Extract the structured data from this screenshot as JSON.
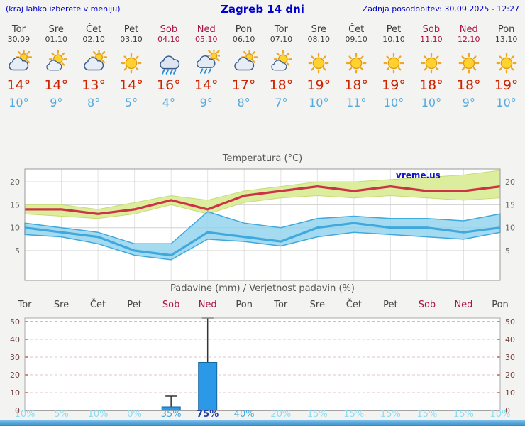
{
  "header": {
    "left_note": "(kraj lahko izberete v meniju)",
    "title": "Zagreb 14 dni",
    "updated": "Zadnja posodobitev: 30.09.2025 - 12:27"
  },
  "colors": {
    "header_blue": "#0000cc",
    "weekend": "#aa1144",
    "high_temp": "#cc2200",
    "low_temp": "#55aadd",
    "max_line": "#cc3344",
    "min_line": "#3fa8dc",
    "max_band": "#dcee9e",
    "max_band_edge": "#c6dc74",
    "min_band": "#8ed2ee",
    "bar_fill": "#2b99e8",
    "bar_stroke": "#15639f",
    "watermark": "#1111cc",
    "prob_light": "#8fdcf2",
    "prob_mid": "#46a8dc",
    "prob_high": "#1d3fa8"
  },
  "days": [
    {
      "name": "Tor",
      "date": "30.09",
      "weekend": false,
      "icon": "cloud-sun",
      "high": "14°",
      "low": "10°"
    },
    {
      "name": "Sre",
      "date": "01.10",
      "weekend": false,
      "icon": "sun-cloud",
      "high": "14°",
      "low": "9°"
    },
    {
      "name": "Čet",
      "date": "02.10",
      "weekend": false,
      "icon": "cloud-sun",
      "high": "13°",
      "low": "8°"
    },
    {
      "name": "Pet",
      "date": "03.10",
      "weekend": false,
      "icon": "sun",
      "high": "14°",
      "low": "5°"
    },
    {
      "name": "Sob",
      "date": "04.10",
      "weekend": true,
      "icon": "rain",
      "high": "16°",
      "low": "4°"
    },
    {
      "name": "Ned",
      "date": "05.10",
      "weekend": true,
      "icon": "rain-sun",
      "high": "14°",
      "low": "9°"
    },
    {
      "name": "Pon",
      "date": "06.10",
      "weekend": false,
      "icon": "cloud-sun",
      "high": "17°",
      "low": "8°"
    },
    {
      "name": "Tor",
      "date": "07.10",
      "weekend": false,
      "icon": "sun-cloud",
      "high": "18°",
      "low": "7°"
    },
    {
      "name": "Sre",
      "date": "08.10",
      "weekend": false,
      "icon": "sun",
      "high": "19°",
      "low": "10°"
    },
    {
      "name": "Čet",
      "date": "09.10",
      "weekend": false,
      "icon": "sun",
      "high": "18°",
      "low": "11°"
    },
    {
      "name": "Pet",
      "date": "10.10",
      "weekend": false,
      "icon": "sun",
      "high": "19°",
      "low": "10°"
    },
    {
      "name": "Sob",
      "date": "11.10",
      "weekend": true,
      "icon": "sun",
      "high": "18°",
      "low": "10°"
    },
    {
      "name": "Ned",
      "date": "12.10",
      "weekend": true,
      "icon": "sun",
      "high": "18°",
      "low": "9°"
    },
    {
      "name": "Pon",
      "date": "13.10",
      "weekend": false,
      "icon": "sun",
      "high": "19°",
      "low": "10°"
    }
  ],
  "chart_data": [
    {
      "type": "line",
      "title": "Temperatura (°C)",
      "watermark": "vreme.us",
      "x_labels": [
        "Tor",
        "Sre",
        "Čet",
        "Pet",
        "Sob",
        "Ned",
        "Pon",
        "Tor",
        "Sre",
        "Čet",
        "Pet",
        "Sob",
        "Ned",
        "Pon"
      ],
      "ylim": [
        -1.5,
        22.8
      ],
      "yticks": [
        5,
        10,
        15,
        20
      ],
      "series": [
        {
          "name": "max",
          "values": [
            14,
            14,
            13,
            14,
            16,
            14,
            17,
            18,
            19,
            18,
            19,
            18,
            18,
            19
          ]
        },
        {
          "name": "min",
          "values": [
            10,
            9,
            8,
            5,
            4,
            9,
            8,
            7,
            10,
            11,
            10,
            10,
            9,
            10
          ]
        },
        {
          "name": "max_upper",
          "values": [
            15,
            15,
            14,
            15.5,
            17,
            16,
            18,
            19,
            20,
            20,
            20.5,
            21,
            21.5,
            22.5
          ]
        },
        {
          "name": "max_lower",
          "values": [
            13,
            12.5,
            12,
            13,
            15,
            13,
            15.5,
            16.5,
            17,
            16.5,
            17,
            16.5,
            16,
            16.5
          ]
        },
        {
          "name": "min_upper",
          "values": [
            11,
            10,
            9,
            6.5,
            6.5,
            13.5,
            11,
            10,
            12,
            12.5,
            12,
            12,
            11.5,
            13
          ]
        },
        {
          "name": "min_lower",
          "values": [
            8.5,
            8,
            6.5,
            4,
            3,
            7.5,
            7,
            6,
            8,
            9,
            8.5,
            8,
            7.5,
            9
          ]
        }
      ]
    },
    {
      "type": "bar",
      "title": "Padavine (mm) / Verjetnost padavin (%)",
      "categories": [
        "Tor",
        "Sre",
        "Čet",
        "Pet",
        "Sob",
        "Ned",
        "Pon",
        "Tor",
        "Sre",
        "Čet",
        "Pet",
        "Sob",
        "Ned",
        "Pon"
      ],
      "values": [
        0,
        0,
        0,
        0,
        2,
        27,
        0,
        0,
        0,
        0,
        0,
        0,
        0,
        0
      ],
      "whisker_high": [
        0,
        0,
        0,
        0,
        8,
        52,
        0,
        0,
        0,
        0,
        0,
        0,
        0,
        0
      ],
      "probabilities": [
        10,
        5,
        10,
        0,
        35,
        75,
        40,
        20,
        15,
        15,
        15,
        15,
        15,
        10
      ],
      "ylim": [
        0,
        52
      ],
      "yticks": [
        0,
        10,
        20,
        30,
        40,
        50
      ]
    }
  ]
}
